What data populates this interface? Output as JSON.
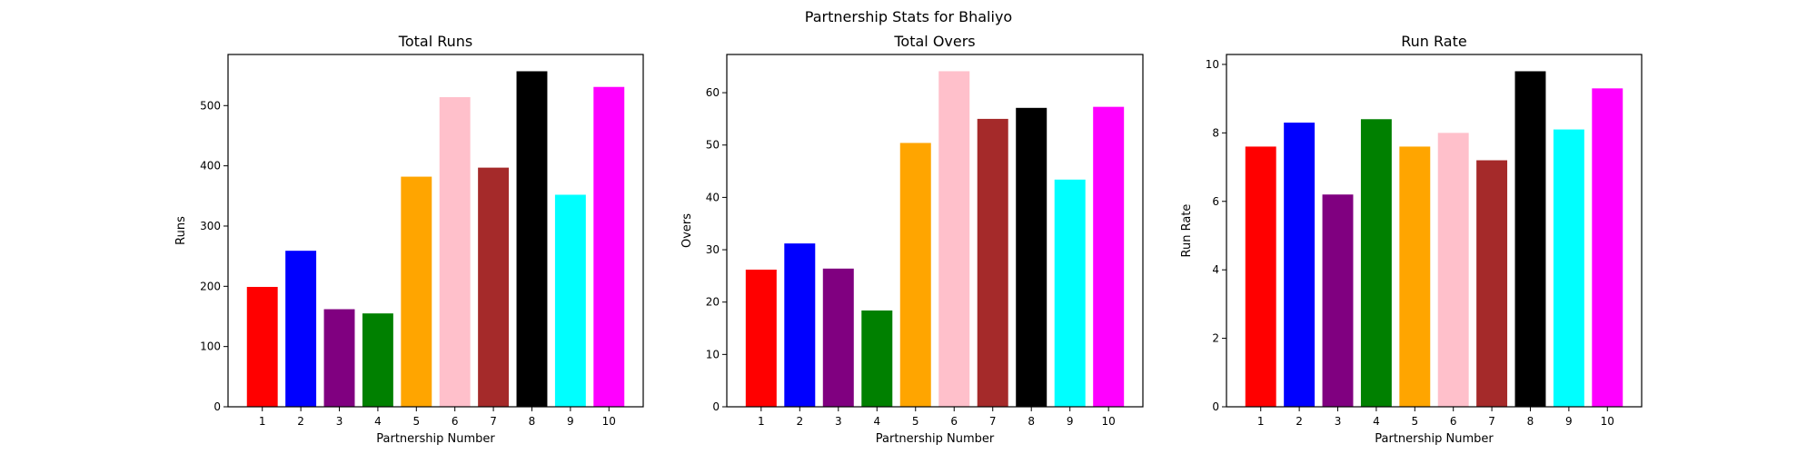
{
  "figure": {
    "title": "Partnership Stats for Bhaliyo"
  },
  "chart_data": [
    {
      "type": "bar",
      "title": "Total Runs",
      "xlabel": "Partnership Number",
      "ylabel": "Runs",
      "categories": [
        "1",
        "2",
        "3",
        "4",
        "5",
        "6",
        "7",
        "8",
        "9",
        "10"
      ],
      "values": [
        199,
        259,
        162,
        155,
        382,
        514,
        397,
        557,
        352,
        531
      ],
      "colors": [
        "#ff0000",
        "#0000ff",
        "#800080",
        "#008000",
        "#ffa500",
        "#ffc0cb",
        "#a52a2a",
        "#000000",
        "#00ffff",
        "#ff00ff"
      ],
      "ylim": [
        0,
        584.85
      ],
      "yticks": [
        0,
        100,
        200,
        300,
        400,
        500
      ],
      "grid": false
    },
    {
      "type": "bar",
      "title": "Total Overs",
      "xlabel": "Partnership Number",
      "ylabel": "Overs",
      "categories": [
        "1",
        "2",
        "3",
        "4",
        "5",
        "6",
        "7",
        "8",
        "9",
        "10"
      ],
      "values": [
        26.2,
        31.2,
        26.4,
        18.4,
        50.4,
        64.1,
        55,
        57.1,
        43.4,
        57.3
      ],
      "colors": [
        "#ff0000",
        "#0000ff",
        "#800080",
        "#008000",
        "#ffa500",
        "#ffc0cb",
        "#a52a2a",
        "#000000",
        "#00ffff",
        "#ff00ff"
      ],
      "ylim": [
        0,
        67.3
      ],
      "yticks": [
        0,
        10,
        20,
        30,
        40,
        50,
        60
      ],
      "grid": false
    },
    {
      "type": "bar",
      "title": "Run Rate",
      "xlabel": "Partnership Number",
      "ylabel": "Run Rate",
      "categories": [
        "1",
        "2",
        "3",
        "4",
        "5",
        "6",
        "7",
        "8",
        "9",
        "10"
      ],
      "values": [
        7.6,
        8.3,
        6.2,
        8.4,
        7.6,
        8.0,
        7.2,
        9.8,
        8.1,
        9.3
      ],
      "colors": [
        "#ff0000",
        "#0000ff",
        "#800080",
        "#008000",
        "#ffa500",
        "#ffc0cb",
        "#a52a2a",
        "#000000",
        "#00ffff",
        "#ff00ff"
      ],
      "ylim": [
        0,
        10.29
      ],
      "yticks": [
        0,
        2,
        4,
        6,
        8,
        10
      ],
      "grid": false
    }
  ]
}
